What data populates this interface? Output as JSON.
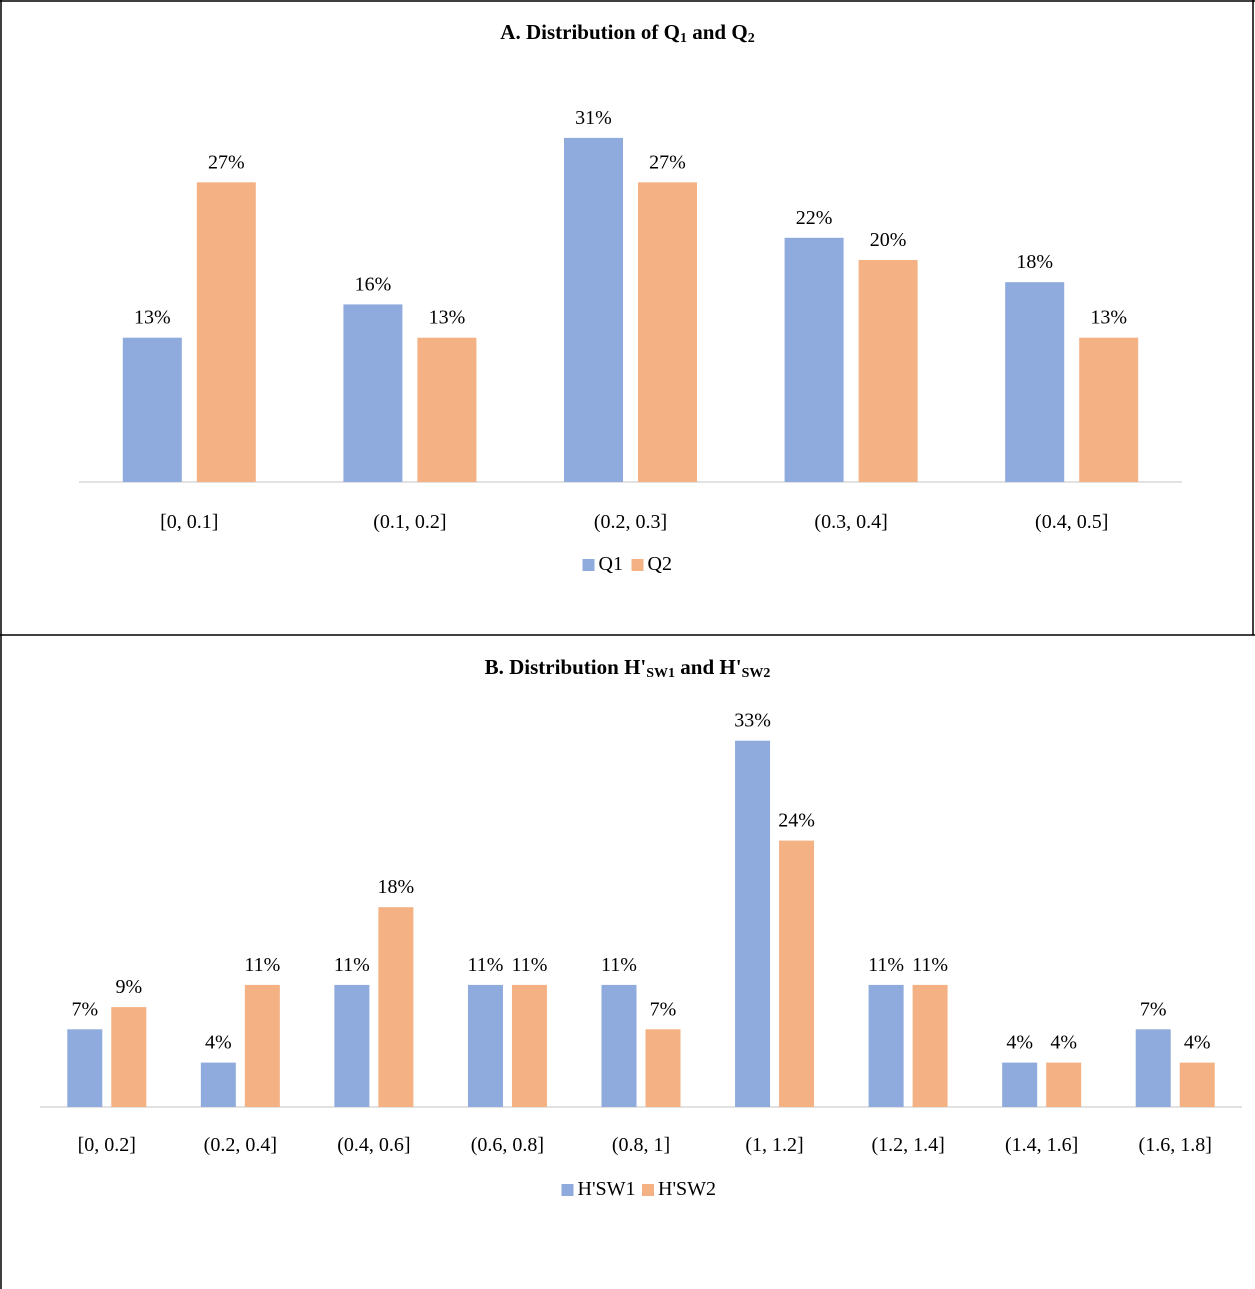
{
  "colors": {
    "series1": "#8faadc",
    "series2": "#f4b183",
    "axis": "#d9d9d9",
    "border": "#000000"
  },
  "chart_data": [
    {
      "type": "bar",
      "title": {
        "main": "A. Distribution of Q",
        "sub1": "1",
        "mid": " and Q",
        "sub2": "2"
      },
      "categories": [
        "[0, 0.1]",
        "(0.1, 0.2]",
        "(0.2, 0.3]",
        "(0.3, 0.4]",
        "(0.4, 0.5]"
      ],
      "series": [
        {
          "name": "Q1",
          "values": [
            13,
            16,
            31,
            22,
            18
          ],
          "labels": [
            "13%",
            "16%",
            "31%",
            "22%",
            "18%"
          ]
        },
        {
          "name": "Q2",
          "values": [
            27,
            13,
            27,
            20,
            13
          ],
          "labels": [
            "27%",
            "13%",
            "27%",
            "20%",
            "13%"
          ]
        }
      ],
      "legend_position": "bottom",
      "grid": false
    },
    {
      "type": "bar",
      "title": {
        "main": "B. Distribution H'",
        "sub1": "SW1",
        "mid": " and H'",
        "sub2": "SW2"
      },
      "categories": [
        "[0, 0.2]",
        "(0.2, 0.4]",
        "(0.4, 0.6]",
        "(0.6, 0.8]",
        "(0.8, 1]",
        "(1, 1.2]",
        "(1.2, 1.4]",
        "(1.4, 1.6]",
        "(1.6, 1.8]"
      ],
      "series": [
        {
          "name": "H'SW1",
          "values": [
            7,
            4,
            11,
            11,
            11,
            33,
            11,
            4,
            7
          ],
          "labels": [
            "7%",
            "4%",
            "11%",
            "11%",
            "11%",
            "33%",
            "11%",
            "4%",
            "7%"
          ]
        },
        {
          "name": "H'SW2",
          "values": [
            9,
            11,
            18,
            11,
            7,
            24,
            11,
            4,
            4
          ],
          "labels": [
            "9%",
            "11%",
            "18%",
            "11%",
            "7%",
            "24%",
            "11%",
            "4%",
            "4%"
          ]
        }
      ],
      "legend_position": "bottom",
      "grid": false
    }
  ]
}
